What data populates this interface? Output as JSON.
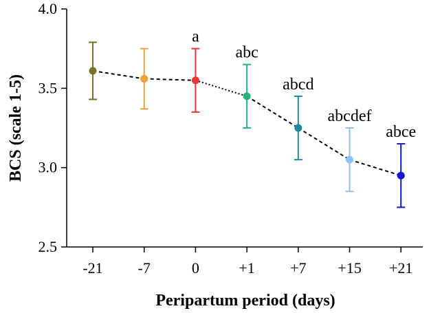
{
  "chart_data": {
    "type": "line",
    "title": "",
    "xlabel": "Peripartum period (days)",
    "ylabel": "BCS (scale 1-5)",
    "ylim": [
      2.5,
      4.0
    ],
    "yticks": [
      "2.5",
      "3.0",
      "3.5",
      "4.0"
    ],
    "yticks_values": [
      2.5,
      3.0,
      3.5,
      4.0
    ],
    "categories": [
      "-21",
      "-7",
      "0",
      "+1",
      "+7",
      "+15",
      "+21"
    ],
    "values": [
      3.61,
      3.56,
      3.55,
      3.45,
      3.25,
      3.05,
      2.95
    ],
    "error_upper": [
      3.79,
      3.75,
      3.75,
      3.65,
      3.45,
      3.25,
      3.15
    ],
    "error_lower": [
      3.43,
      3.37,
      3.35,
      3.25,
      3.05,
      2.85,
      2.75
    ],
    "point_labels": [
      "",
      "",
      "a",
      "abc",
      "abcd",
      "abcdef",
      "abce"
    ],
    "colors": [
      "#7a7026",
      "#f0a030",
      "#e83838",
      "#2db37a",
      "#1f8a96",
      "#8ec1ec",
      "#1515d2"
    ],
    "line_color": "#000000",
    "segment_styles": [
      "dashed",
      "dashed",
      "dotted",
      "dashed",
      "dashed",
      "dashed"
    ]
  }
}
